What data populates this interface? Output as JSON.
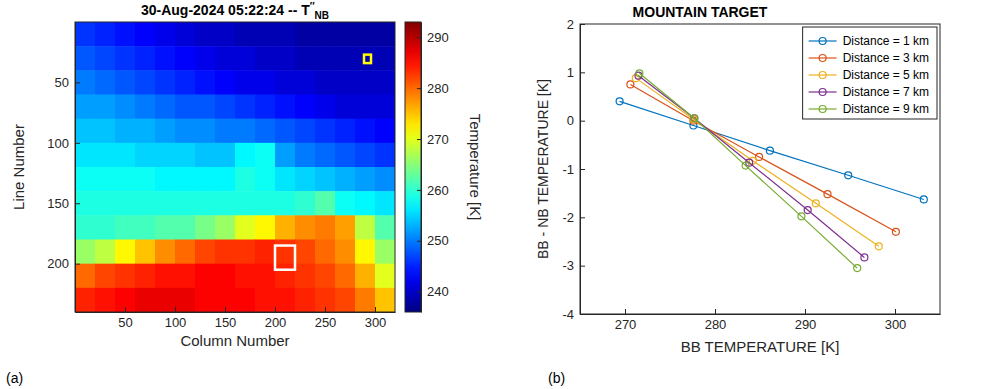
{
  "chart_data": [
    {
      "type": "heatmap",
      "panel_label": "(a)",
      "title": {
        "text": "30-Aug-2024 05:22:24 -- T",
        "superscript": "′′",
        "subscript": "NB"
      },
      "x_label": "Column Number",
      "y_label": "Line Number",
      "xlim": [
        0,
        320
      ],
      "ylim": [
        0,
        240
      ],
      "xticks": [
        50,
        100,
        150,
        200,
        250,
        300
      ],
      "yticks": [
        50,
        100,
        150,
        200
      ],
      "column_edges": [
        0,
        20,
        40,
        60,
        80,
        100,
        120,
        140,
        160,
        180,
        200,
        220,
        240,
        260,
        280,
        300,
        320
      ],
      "line_edges": [
        0,
        20,
        40,
        60,
        80,
        100,
        120,
        140,
        160,
        180,
        200,
        220,
        240
      ],
      "cells": [
        [
          246,
          245,
          244,
          243,
          242,
          241,
          240,
          240,
          239,
          239,
          239,
          238,
          238,
          238,
          238,
          238
        ],
        [
          248,
          247,
          246,
          245,
          244,
          243,
          242,
          241,
          241,
          240,
          240,
          239,
          239,
          239,
          239,
          239
        ],
        [
          250,
          249,
          248,
          247,
          246,
          245,
          244,
          243,
          242,
          242,
          241,
          241,
          240,
          240,
          240,
          240
        ],
        [
          252,
          252,
          251,
          250,
          249,
          248,
          248,
          247,
          246,
          245,
          244,
          243,
          242,
          241,
          241,
          241
        ],
        [
          254,
          254,
          253,
          253,
          252,
          251,
          251,
          250,
          250,
          249,
          248,
          247,
          246,
          245,
          244,
          243
        ],
        [
          256,
          256,
          256,
          255,
          255,
          255,
          254,
          254,
          257,
          258,
          252,
          250,
          249,
          248,
          247,
          246
        ],
        [
          258,
          258,
          258,
          258,
          257,
          257,
          257,
          257,
          259,
          258,
          256,
          255,
          254,
          253,
          252,
          251
        ],
        [
          259,
          259,
          259,
          259,
          259,
          259,
          259,
          259,
          259,
          259,
          259,
          260,
          262,
          258,
          257,
          256
        ],
        [
          260,
          260,
          261,
          261,
          262,
          262,
          264,
          266,
          270,
          272,
          276,
          278,
          279,
          277,
          268,
          262
        ],
        [
          266,
          268,
          272,
          275,
          278,
          280,
          282,
          283,
          283,
          284,
          283,
          282,
          280,
          278,
          272,
          266
        ],
        [
          280,
          282,
          283,
          284,
          285,
          285,
          286,
          286,
          285,
          285,
          284,
          283,
          282,
          280,
          276,
          270
        ],
        [
          284,
          285,
          286,
          287,
          287,
          287,
          286,
          286,
          286,
          285,
          285,
          284,
          283,
          282,
          279,
          275
        ]
      ],
      "regions": [
        {
          "columns": [
            200,
            220
          ],
          "lines": [
            185,
            205
          ],
          "color": "#ffffff"
        },
        {
          "columns": [
            289,
            296
          ],
          "lines": [
            27,
            34
          ],
          "color": "#ffff00"
        }
      ],
      "colorbar": {
        "label": "Temperature [K]",
        "range": [
          236,
          293
        ],
        "ticks": [
          240,
          250,
          260,
          270,
          280,
          290
        ]
      }
    },
    {
      "type": "line",
      "panel_label": "(b)",
      "title": "MOUNTAIN TARGET",
      "x_label": "BB TEMPERATURE [K]",
      "y_label": "BB - NB TEMPERATURE [K]",
      "xlim": [
        265,
        305
      ],
      "ylim": [
        -4,
        2
      ],
      "xticks": [
        270,
        280,
        290,
        300
      ],
      "yticks": [
        -4,
        -3,
        -2,
        -1,
        0,
        1,
        2
      ],
      "grid": false,
      "legend": "northeast",
      "marker": "circle",
      "line_style": "solid",
      "series": [
        {
          "name": "Distance = 1 km",
          "color": "#0072BD",
          "x": [
            269.4,
            277.6,
            286.1,
            294.8,
            303.2
          ],
          "values": [
            0.4,
            -0.1,
            -0.62,
            -1.13,
            -1.63
          ]
        },
        {
          "name": "Distance = 3 km",
          "color": "#D95319",
          "x": [
            270.6,
            277.6,
            284.9,
            292.5,
            300.1
          ],
          "values": [
            0.75,
            0.0,
            -0.75,
            -1.52,
            -2.3
          ]
        },
        {
          "name": "Distance = 5 km",
          "color": "#EDB120",
          "x": [
            271.2,
            277.6,
            284.2,
            291.2,
            298.2
          ],
          "values": [
            0.88,
            0.03,
            -0.83,
            -1.71,
            -2.6
          ]
        },
        {
          "name": "Distance = 7 km",
          "color": "#7E2F8E",
          "x": [
            271.5,
            277.7,
            283.8,
            290.3,
            296.6
          ],
          "values": [
            0.93,
            0.05,
            -0.87,
            -1.85,
            -2.83
          ]
        },
        {
          "name": "Distance = 9 km",
          "color": "#77AC30",
          "x": [
            271.6,
            277.7,
            283.4,
            289.6,
            295.8
          ],
          "values": [
            0.98,
            0.05,
            -0.93,
            -1.98,
            -3.05
          ]
        }
      ]
    }
  ]
}
